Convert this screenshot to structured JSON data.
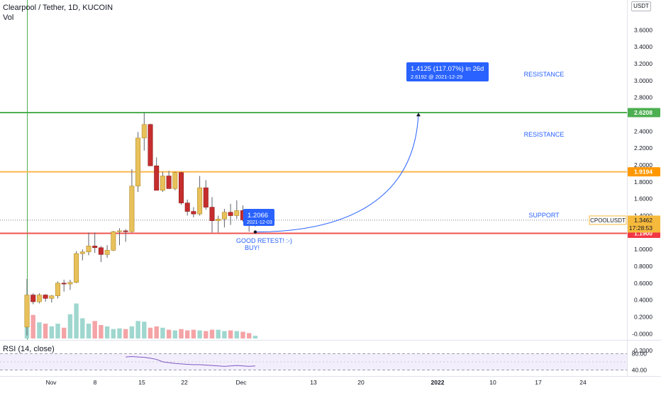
{
  "header": {
    "title": "Clearpool / Tether, 1D, KUCOIN",
    "vol_label": "Vol",
    "currency": "USDT",
    "rsi_label": "RSI (14, close)"
  },
  "price_axis": {
    "ticks": [
      "3.6000",
      "3.4000",
      "3.2000",
      "3.0000",
      "2.8000",
      "2.6000",
      "2.4000",
      "2.2000",
      "2.0000",
      "1.8000",
      "1.6000",
      "1.4000",
      "1.2000",
      "1.0000",
      "0.8000",
      "0.6000",
      "0.4000",
      "0.2000",
      "-0.0000",
      "-0.2000"
    ],
    "tick_values": [
      3.6,
      3.4,
      3.2,
      3.0,
      2.8,
      2.6,
      2.4,
      2.2,
      2.0,
      1.8,
      1.6,
      1.4,
      1.2,
      1.0,
      0.8,
      0.6,
      0.4,
      0.2,
      0.0,
      -0.2
    ],
    "ylim": [
      -0.25,
      3.8
    ]
  },
  "rsi_axis": {
    "ticks": [
      "80.00",
      "40.00"
    ]
  },
  "time_axis": {
    "labels": [
      "Nov",
      "8",
      "15",
      "22",
      "Dec",
      "13",
      "20",
      "2022",
      "10",
      "17",
      "24"
    ],
    "bold": [
      false,
      false,
      false,
      false,
      false,
      false,
      false,
      true,
      false,
      false,
      false
    ]
  },
  "levels": [
    {
      "price": 2.6208,
      "label": "2.6208",
      "note": "RESISTANCE",
      "color": "#4caf50",
      "label_bg": "#4caf50"
    },
    {
      "price": 1.9194,
      "label": "1.9194",
      "note": "RESISTANCE",
      "color": "#ffb74d",
      "label_bg": "#ff9800"
    },
    {
      "price": 1.19,
      "label": "1.1900",
      "note": "SUPPORT",
      "color": "#ef5350",
      "label_bg": "#f23645"
    }
  ],
  "current_price": {
    "symbol": "CPOOLUSDT",
    "value": "1.3462",
    "countdown": "17:28:53",
    "price": 1.3462,
    "color": "#f5b93c"
  },
  "projection": {
    "main": "1.4125 (117.07%) in 26d",
    "sub": "2.6192 @ 2021-12-29",
    "target_price": 2.6192
  },
  "low_callout": {
    "value": "1.2066",
    "date": "2021-12-03",
    "price": 1.2066
  },
  "notes": {
    "line1": "GOOD RETEST! :-)",
    "line2": "BUY!"
  },
  "colors": {
    "up": "#e8c15b",
    "down": "#c62d2d",
    "vol_up": "#9fd7cf",
    "vol_down": "#f4a3a6",
    "callout": "#2962ff"
  },
  "chart_data": {
    "type": "candlestick",
    "title": "Clearpool / Tether, 1D, KUCOIN",
    "candles": [
      {
        "o": 0.08,
        "h": 0.65,
        "l": -0.02,
        "c": 0.46
      },
      {
        "o": 0.46,
        "h": 0.48,
        "l": 0.35,
        "c": 0.38
      },
      {
        "o": 0.38,
        "h": 0.48,
        "l": 0.36,
        "c": 0.46
      },
      {
        "o": 0.46,
        "h": 0.47,
        "l": 0.38,
        "c": 0.42
      },
      {
        "o": 0.42,
        "h": 0.46,
        "l": 0.37,
        "c": 0.45
      },
      {
        "o": 0.45,
        "h": 0.62,
        "l": 0.42,
        "c": 0.6
      },
      {
        "o": 0.6,
        "h": 0.64,
        "l": 0.5,
        "c": 0.59
      },
      {
        "o": 0.59,
        "h": 0.64,
        "l": 0.52,
        "c": 0.61
      },
      {
        "o": 0.61,
        "h": 0.98,
        "l": 0.6,
        "c": 0.95
      },
      {
        "o": 0.95,
        "h": 1.0,
        "l": 0.87,
        "c": 0.97
      },
      {
        "o": 0.97,
        "h": 1.2,
        "l": 0.93,
        "c": 1.04
      },
      {
        "o": 1.04,
        "h": 1.2,
        "l": 0.96,
        "c": 1.02
      },
      {
        "o": 1.02,
        "h": 1.04,
        "l": 0.85,
        "c": 0.94
      },
      {
        "o": 0.94,
        "h": 1.05,
        "l": 0.9,
        "c": 0.99
      },
      {
        "o": 0.99,
        "h": 1.22,
        "l": 0.98,
        "c": 1.21
      },
      {
        "o": 1.21,
        "h": 1.25,
        "l": 1.05,
        "c": 1.22
      },
      {
        "o": 1.22,
        "h": 1.24,
        "l": 1.09,
        "c": 1.21
      },
      {
        "o": 1.21,
        "h": 1.95,
        "l": 1.2,
        "c": 1.75
      },
      {
        "o": 1.75,
        "h": 2.39,
        "l": 1.68,
        "c": 2.32
      },
      {
        "o": 2.32,
        "h": 2.62,
        "l": 2.17,
        "c": 2.48
      },
      {
        "o": 2.48,
        "h": 2.49,
        "l": 1.99,
        "c": 1.99
      },
      {
        "o": 1.99,
        "h": 2.09,
        "l": 1.7,
        "c": 1.7
      },
      {
        "o": 1.7,
        "h": 1.92,
        "l": 1.68,
        "c": 1.87
      },
      {
        "o": 1.87,
        "h": 1.93,
        "l": 1.72,
        "c": 1.72
      },
      {
        "o": 1.72,
        "h": 1.92,
        "l": 1.7,
        "c": 1.91
      },
      {
        "o": 1.91,
        "h": 1.92,
        "l": 1.53,
        "c": 1.55
      },
      {
        "o": 1.55,
        "h": 1.59,
        "l": 1.4,
        "c": 1.45
      },
      {
        "o": 1.45,
        "h": 1.5,
        "l": 1.38,
        "c": 1.42
      },
      {
        "o": 1.42,
        "h": 1.87,
        "l": 1.4,
        "c": 1.73
      },
      {
        "o": 1.73,
        "h": 1.82,
        "l": 1.47,
        "c": 1.5
      },
      {
        "o": 1.5,
        "h": 1.62,
        "l": 1.2,
        "c": 1.34
      },
      {
        "o": 1.34,
        "h": 1.4,
        "l": 1.2,
        "c": 1.36
      },
      {
        "o": 1.36,
        "h": 1.48,
        "l": 1.26,
        "c": 1.44
      },
      {
        "o": 1.44,
        "h": 1.54,
        "l": 1.29,
        "c": 1.4
      },
      {
        "o": 1.4,
        "h": 1.58,
        "l": 1.36,
        "c": 1.46
      },
      {
        "o": 1.46,
        "h": 1.52,
        "l": 1.33,
        "c": 1.35
      },
      {
        "o": 1.35,
        "h": 1.37,
        "l": 1.21,
        "c": 1.29
      },
      {
        "o": 1.29,
        "h": 1.38,
        "l": 1.27,
        "c": 1.35
      }
    ],
    "volumes": [
      55,
      35,
      24,
      22,
      18,
      22,
      16,
      36,
      52,
      30,
      22,
      26,
      20,
      18,
      14,
      15,
      14,
      18,
      26,
      25,
      16,
      18,
      16,
      13,
      12,
      14,
      12,
      13,
      12,
      11,
      13,
      13,
      11,
      12,
      11,
      10,
      8,
      4
    ],
    "rsi": [
      72,
      73,
      72,
      71,
      69,
      66,
      60,
      58,
      56,
      55,
      54,
      53,
      53,
      52,
      51,
      50,
      49,
      50,
      51,
      50,
      49,
      50
    ]
  }
}
